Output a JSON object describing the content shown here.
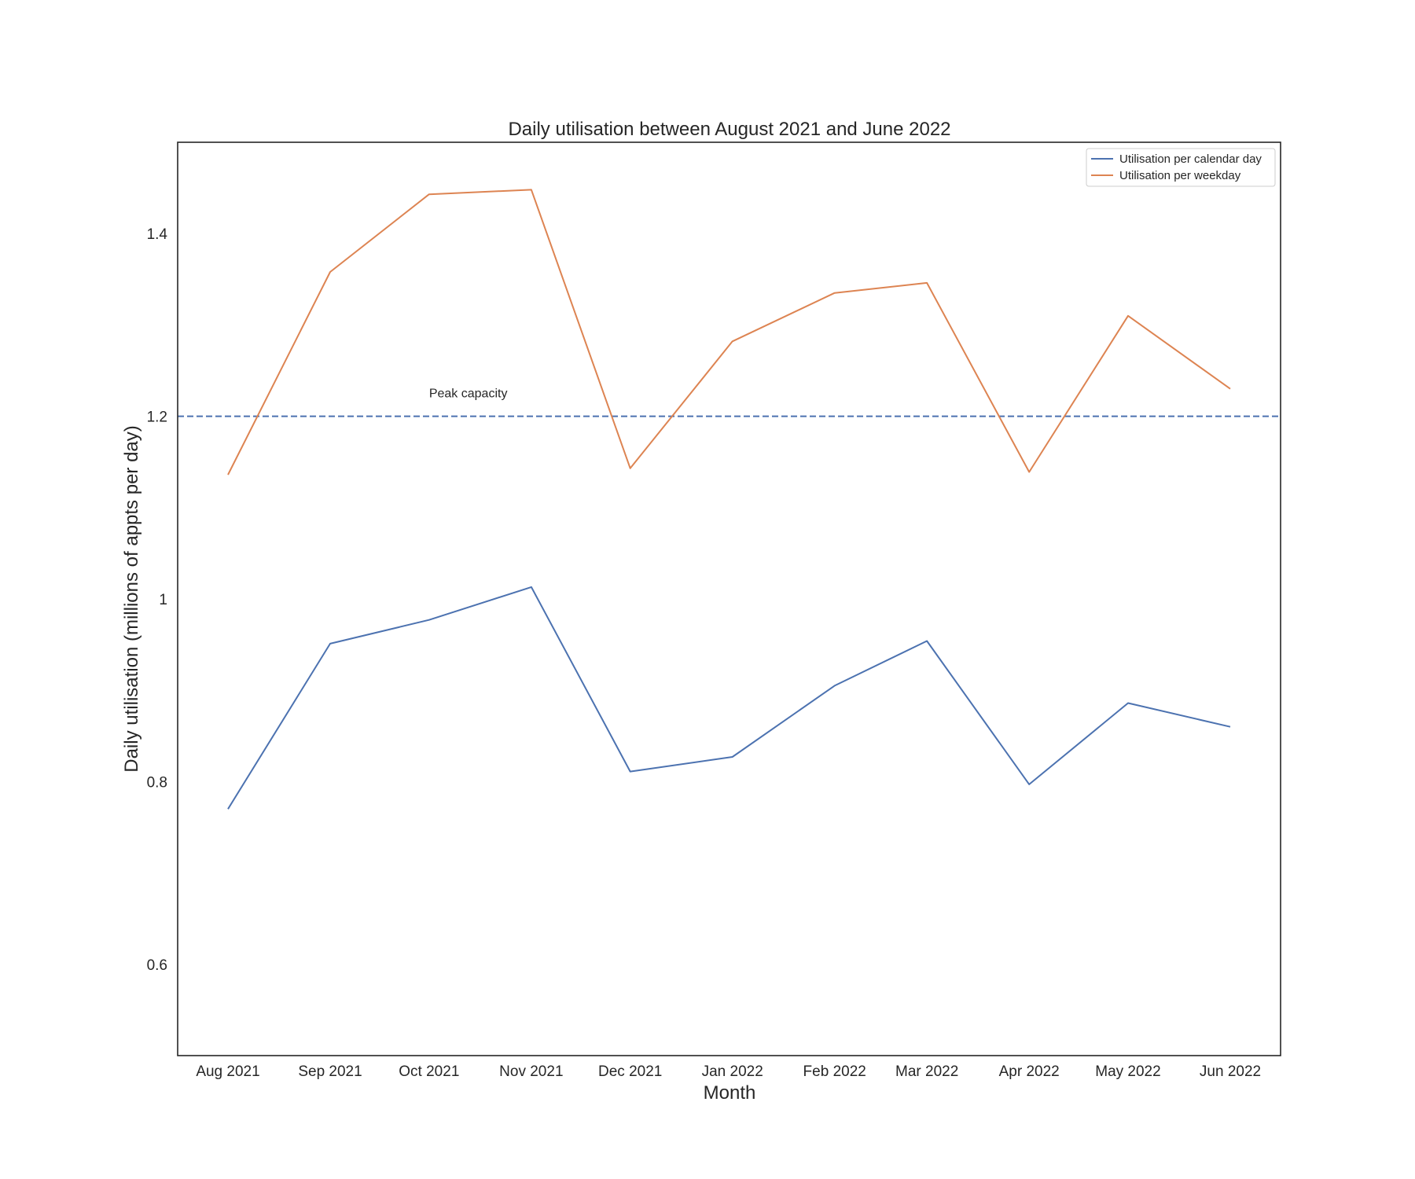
{
  "chart_data": {
    "type": "line",
    "title": "Daily utilisation between August 2021 and June 2022",
    "xlabel": "Month",
    "ylabel": "Daily utilisation (millions of appts per day)",
    "categories": [
      "Aug 2021",
      "Sep 2021",
      "Oct 2021",
      "Nov 2021",
      "Dec 2021",
      "Jan 2022",
      "Feb 2022",
      "Mar 2022",
      "Apr 2022",
      "May 2022",
      "Jun 2022"
    ],
    "x": [
      "2021-08-01",
      "2021-09-01",
      "2021-10-01",
      "2021-11-01",
      "2021-12-01",
      "2022-01-01",
      "2022-02-01",
      "2022-03-01",
      "2022-04-01",
      "2022-05-01",
      "2022-06-01"
    ],
    "ylim": [
      0.5,
      1.5
    ],
    "yticks": [
      0.6,
      0.8,
      1,
      1.2,
      1.4
    ],
    "ytick_labels": [
      "0.6",
      "0.8",
      "1",
      "1.2",
      "1.4"
    ],
    "grid": false,
    "legend_position": "top-right",
    "series": [
      {
        "name": "Utilisation per calendar day",
        "color": "#4c72b0",
        "values": [
          0.77,
          0.951,
          0.977,
          1.013,
          0.811,
          0.827,
          0.905,
          0.954,
          0.797,
          0.886,
          0.86
        ]
      },
      {
        "name": "Utilisation per weekday",
        "color": "#dd8452",
        "values": [
          1.136,
          1.358,
          1.443,
          1.448,
          1.143,
          1.282,
          1.335,
          1.346,
          1.139,
          1.31,
          1.23
        ]
      }
    ],
    "reference_line": {
      "value": 1.2,
      "label": "Peak capacity",
      "color": "#4c72b0",
      "style": "dashed"
    }
  }
}
